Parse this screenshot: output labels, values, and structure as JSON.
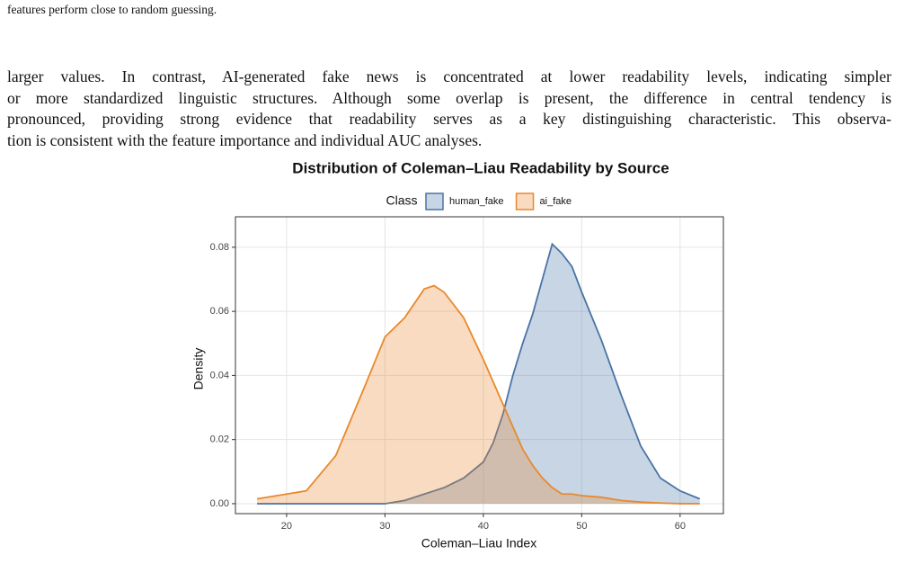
{
  "caption_tail": "features perform close to random guessing.",
  "paragraph_lines": [
    "larger values. In contrast, AI-generated fake news is concentrated at lower readability levels, indicating simpler",
    "or more standardized linguistic structures. Although some overlap is present, the difference in central tendency is",
    "pronounced, providing strong evidence that readability serves as a key distinguishing characteristic. This observa-",
    "tion is consistent with the feature importance and individual AUC analyses."
  ],
  "chart_data": {
    "type": "density",
    "title": "Distribution of Coleman–Liau Readability by Source",
    "legend_title": "Class",
    "x_label": "Coleman–Liau Index",
    "y_label": "Density",
    "x": [
      17,
      20,
      22,
      25,
      28,
      30,
      32,
      34,
      35,
      36,
      38,
      40,
      41,
      42,
      43,
      44,
      45,
      46,
      47,
      48,
      49,
      50,
      52,
      54,
      56,
      58,
      60,
      62
    ],
    "series": [
      {
        "name": "human_fake",
        "color": "#4a74a5",
        "values": [
          0,
          0,
          0,
          0,
          0,
          0,
          0.001,
          0.003,
          0.004,
          0.005,
          0.008,
          0.013,
          0.019,
          0.028,
          0.04,
          0.05,
          0.059,
          0.07,
          0.081,
          0.078,
          0.074,
          0.066,
          0.051,
          0.034,
          0.018,
          0.008,
          0.004,
          0.0015
        ]
      },
      {
        "name": "ai_fake",
        "color": "#e8892e",
        "values": [
          0.0015,
          0.003,
          0.004,
          0.015,
          0.037,
          0.052,
          0.058,
          0.067,
          0.068,
          0.066,
          0.058,
          0.045,
          0.038,
          0.031,
          0.024,
          0.017,
          0.012,
          0.008,
          0.005,
          0.003,
          0.003,
          0.0025,
          0.002,
          0.001,
          0.0005,
          0.0002,
          0,
          0
        ]
      }
    ],
    "xlim": [
      14.8,
      64.4
    ],
    "ylim": [
      -0.0031,
      0.0895
    ],
    "xticks": [
      20,
      30,
      40,
      50,
      60
    ],
    "yticks": [
      {
        "value": 0,
        "label": "0.00"
      },
      0.02,
      0.04,
      0.06,
      0.08
    ],
    "grid": true,
    "legend_position": "top"
  }
}
